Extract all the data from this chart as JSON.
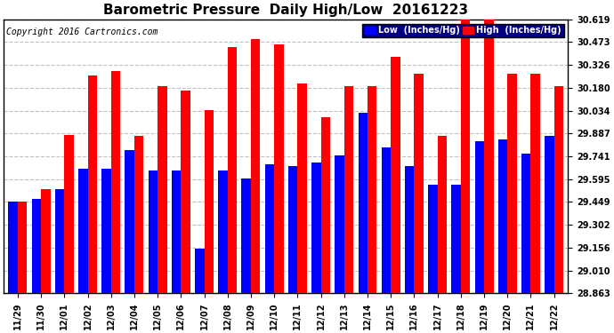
{
  "title": "Barometric Pressure  Daily High/Low  20161223",
  "copyright": "Copyright 2016 Cartronics.com",
  "dates": [
    "11/29",
    "11/30",
    "12/01",
    "12/02",
    "12/03",
    "12/04",
    "12/05",
    "12/06",
    "12/07",
    "12/08",
    "12/09",
    "12/10",
    "12/11",
    "12/12",
    "12/13",
    "12/14",
    "12/15",
    "12/16",
    "12/17",
    "12/18",
    "12/19",
    "12/20",
    "12/21",
    "12/22"
  ],
  "low": [
    29.45,
    29.47,
    29.53,
    29.66,
    29.66,
    29.78,
    29.65,
    29.65,
    29.15,
    29.65,
    29.6,
    29.69,
    29.68,
    29.7,
    29.75,
    30.02,
    29.8,
    29.68,
    29.56,
    29.56,
    29.84,
    29.85,
    29.76,
    29.87
  ],
  "high": [
    29.45,
    29.53,
    29.88,
    30.26,
    30.29,
    29.87,
    30.19,
    30.16,
    30.04,
    30.44,
    30.49,
    30.46,
    30.21,
    29.99,
    30.19,
    30.19,
    30.38,
    30.27,
    29.87,
    30.62,
    30.62,
    30.27,
    30.27,
    30.19
  ],
  "ymin": 28.863,
  "ymax": 30.619,
  "yticks": [
    28.863,
    29.01,
    29.156,
    29.302,
    29.449,
    29.595,
    29.741,
    29.887,
    30.034,
    30.18,
    30.326,
    30.473,
    30.619
  ],
  "low_color": "#0000ff",
  "high_color": "#ff0000",
  "bg_color": "#ffffff",
  "grid_color": "#c0c0c0",
  "title_color": "#000000",
  "copyright_color": "#000000",
  "legend_low_label": "Low  (Inches/Hg)",
  "legend_high_label": "High  (Inches/Hg)",
  "title_fontsize": 11,
  "copyright_fontsize": 7,
  "bar_width": 0.4
}
